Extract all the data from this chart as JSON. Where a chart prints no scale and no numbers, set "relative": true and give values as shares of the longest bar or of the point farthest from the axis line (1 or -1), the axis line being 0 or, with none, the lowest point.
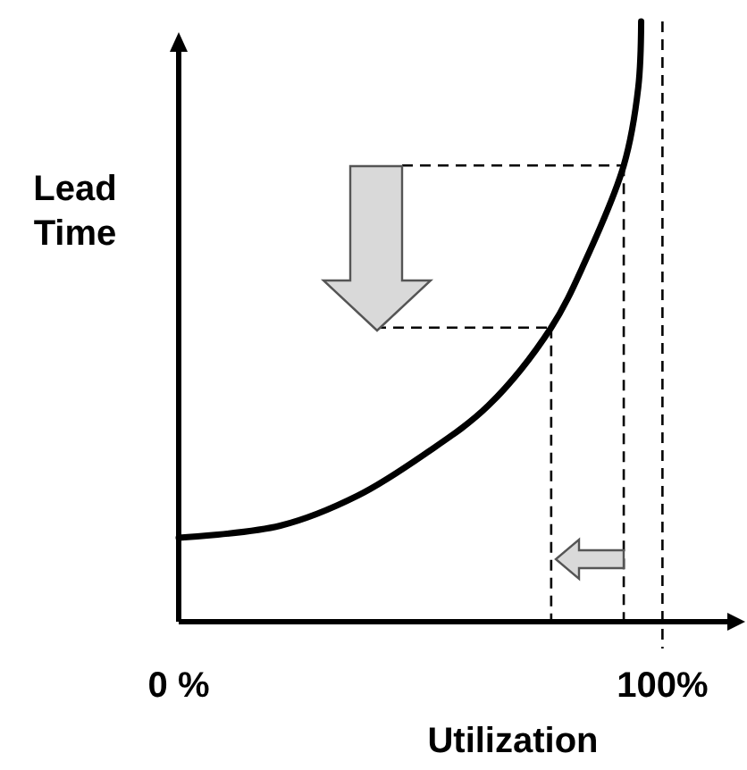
{
  "chart_data": {
    "type": "line",
    "relative": true,
    "xlabel": "Utilization",
    "ylabel": "Lead Time",
    "color": "#000000",
    "x": [
      0,
      21,
      37,
      51,
      64,
      77,
      84,
      92,
      95,
      95.6
    ],
    "values": [
      0.14,
      0.16,
      0.21,
      0.28,
      0.36,
      0.49,
      0.6,
      0.76,
      0.89,
      1
    ],
    "xlim": [
      0,
      116
    ],
    "xticks": [
      {
        "value": 0,
        "label": "0 %"
      },
      {
        "value": 100,
        "label": "100%"
      }
    ],
    "ref_lines": [
      {
        "axis": "x",
        "value": 100,
        "line_style": "dashed"
      },
      {
        "axis": "x",
        "value": 92,
        "line_style": "dashed"
      },
      {
        "axis": "x",
        "value": 77,
        "line_style": "dashed"
      },
      {
        "axis": "y",
        "value": 0.76,
        "line_style": "dashed"
      },
      {
        "axis": "y",
        "value": 0.49,
        "line_style": "dashed"
      }
    ],
    "marker": "none",
    "line_style": "solid"
  }
}
